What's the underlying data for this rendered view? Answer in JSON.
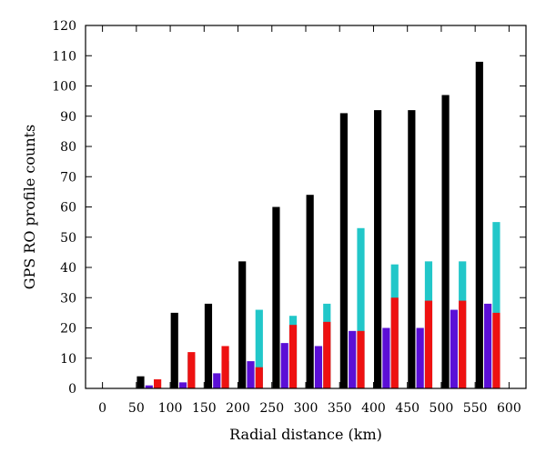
{
  "chart_data": {
    "type": "bar",
    "xlabel": "Radial distance (km)",
    "ylabel": "GPS RO profile counts",
    "xlim": [
      -25,
      625
    ],
    "ylim": [
      0,
      120
    ],
    "x_ticks": [
      0,
      50,
      100,
      150,
      200,
      250,
      300,
      350,
      400,
      450,
      500,
      550,
      600
    ],
    "y_ticks": [
      0,
      10,
      20,
      30,
      40,
      50,
      60,
      70,
      80,
      90,
      100,
      110,
      120
    ],
    "grid": false,
    "legend": "none",
    "bin_starts": [
      50,
      100,
      150,
      200,
      250,
      300,
      350,
      400,
      450,
      500,
      550
    ],
    "bin_width": 50,
    "series": [
      {
        "color": "#000000",
        "values": [
          4,
          25,
          28,
          42,
          60,
          64,
          91,
          92,
          92,
          97,
          108
        ]
      },
      {
        "color": "#5B0FD6",
        "values": [
          1,
          2,
          5,
          9,
          15,
          14,
          19,
          20,
          20,
          26,
          28
        ]
      },
      {
        "color": "#22C7C9",
        "values": [
          0,
          11,
          9,
          26,
          24,
          28,
          53,
          41,
          42,
          42,
          55
        ]
      },
      {
        "color": "#EE1111",
        "values": [
          0,
          3,
          12,
          14,
          7,
          21,
          22,
          19,
          30,
          29,
          29,
          25
        ]
      }
    ],
    "red_bin_starts": [
      50,
      75,
      125,
      175,
      225,
      275,
      325,
      375,
      425,
      475,
      525,
      575
    ]
  }
}
